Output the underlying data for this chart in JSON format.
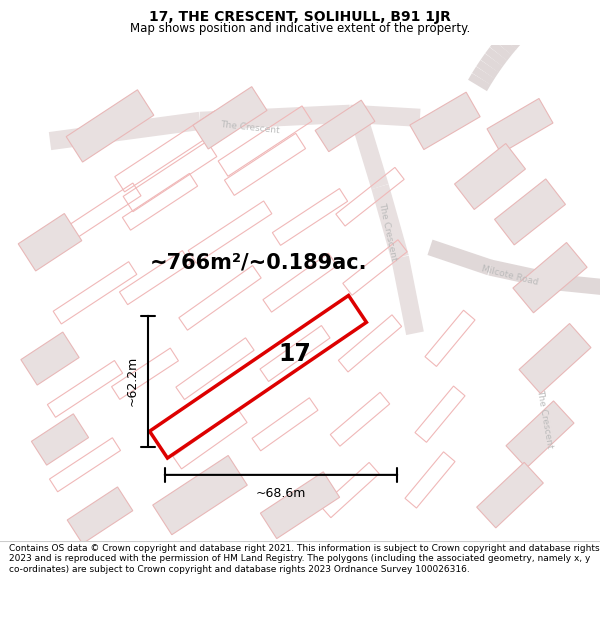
{
  "title": "17, THE CRESCENT, SOLIHULL, B91 1JR",
  "subtitle": "Map shows position and indicative extent of the property.",
  "area_text": "~766m²/~0.189ac.",
  "dim_width": "~68.6m",
  "dim_height": "~62.2m",
  "plot_number": "17",
  "footer": "Contains OS data © Crown copyright and database right 2021. This information is subject to Crown copyright and database rights 2023 and is reproduced with the permission of HM Land Registry. The polygons (including the associated geometry, namely x, y co-ordinates) are subject to Crown copyright and database rights 2023 Ordnance Survey 100026316.",
  "title_fontsize": 10,
  "subtitle_fontsize": 8.5,
  "area_fontsize": 15,
  "dim_fontsize": 9,
  "plot_label_fontsize": 17,
  "footer_fontsize": 6.5,
  "plot_color": "#dd0000",
  "road_outline_color": "#e8b8b8",
  "road_fill_color": "#f0e8e8",
  "building_color": "#d8d0d0",
  "road_label_color": "#aaaaaa"
}
